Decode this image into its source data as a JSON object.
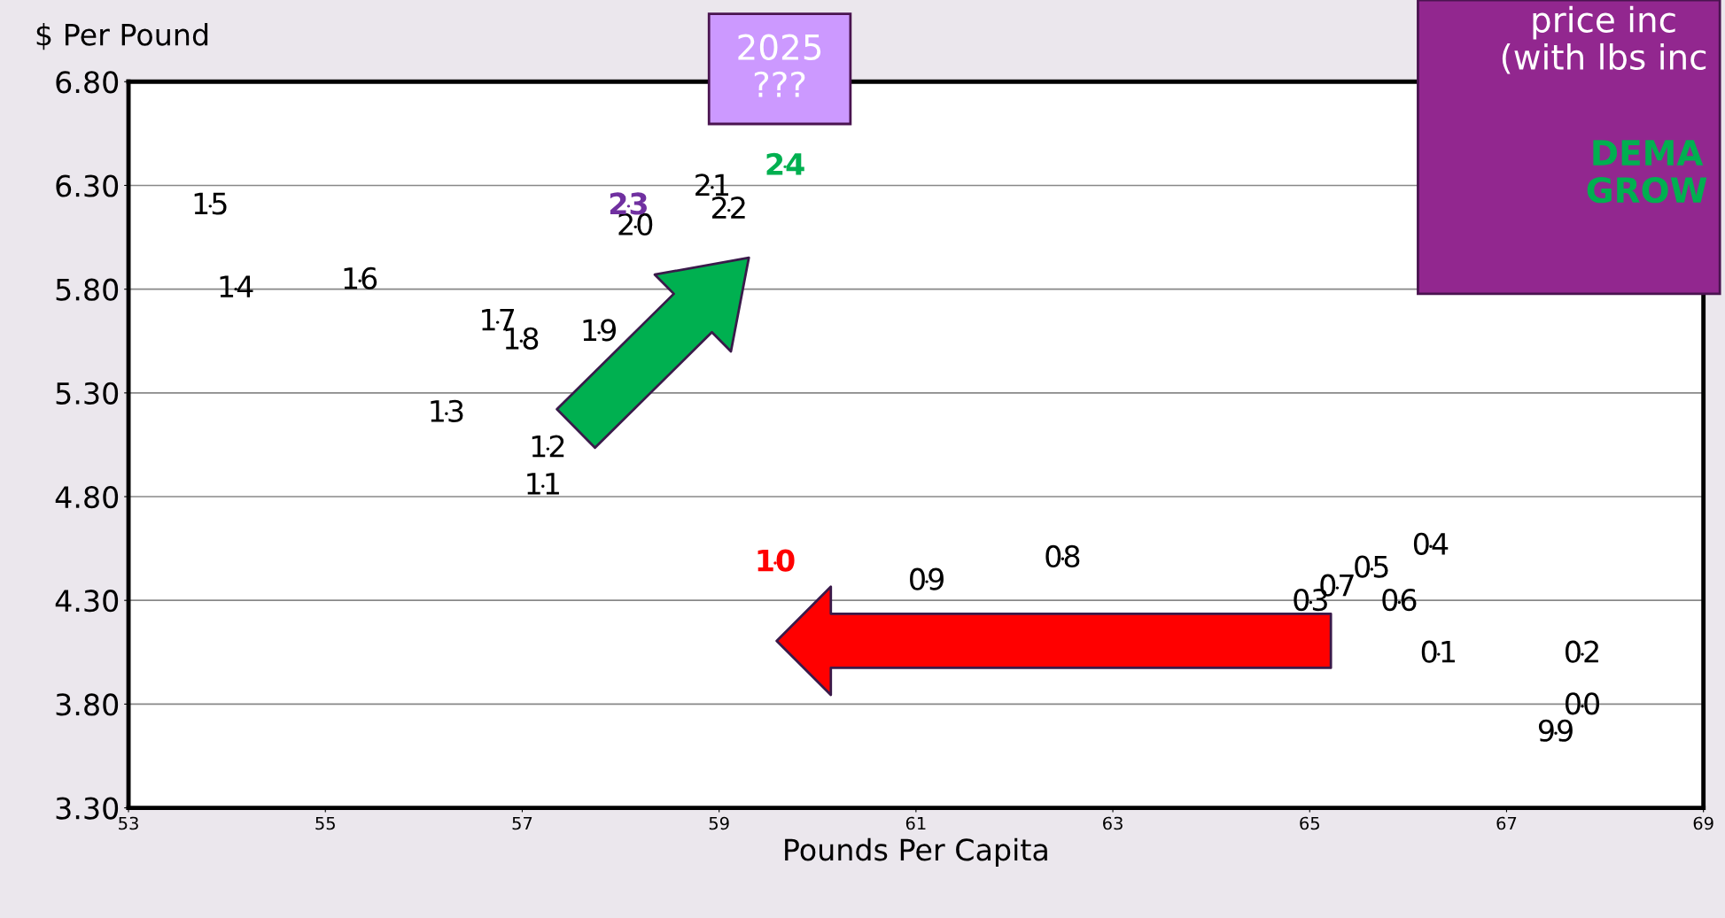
{
  "chart_data": {
    "type": "scatter",
    "xlabel": "Pounds Per Capita",
    "ylabel": "$ Per Pound",
    "xlim": [
      53,
      69
    ],
    "xticks": [
      53,
      55,
      57,
      59,
      61,
      63,
      65,
      67,
      69
    ],
    "ylim": [
      3.3,
      6.8
    ],
    "yticks": [
      {
        "value": 3.3,
        "label": "3.30"
      },
      {
        "value": 3.8,
        "label": "3.80"
      },
      {
        "value": 4.3,
        "label": "4.30"
      },
      {
        "value": 4.8,
        "label": "4.80"
      },
      {
        "value": 5.3,
        "label": "5.30"
      },
      {
        "value": 5.8,
        "label": "5.80"
      },
      {
        "value": 6.3,
        "label": "6.30"
      },
      {
        "value": 6.8,
        "label": "6.80"
      }
    ],
    "grid": "y",
    "annotations": [
      "2025\n???",
      "price inc\n(with lbs inc",
      "DEMA\nGROW",
      {
        "text": "99",
        "x": 67.5,
        "y": 3.66
      },
      {
        "text": "00",
        "x": 67.77,
        "y": 3.79
      },
      {
        "text": "01",
        "x": 66.31,
        "y": 4.04
      },
      {
        "text": "02",
        "x": 67.77,
        "y": 4.04
      },
      {
        "text": "03",
        "x": 65.01,
        "y": 4.29
      },
      {
        "text": "04",
        "x": 66.23,
        "y": 4.56
      },
      {
        "text": "05",
        "x": 65.63,
        "y": 4.45
      },
      {
        "text": "06",
        "x": 65.91,
        "y": 4.29
      },
      {
        "text": "07",
        "x": 65.28,
        "y": 4.36
      },
      {
        "text": "08",
        "x": 62.49,
        "y": 4.5
      },
      {
        "text": "09",
        "x": 61.11,
        "y": 4.39
      },
      {
        "text": "10",
        "x": 59.57,
        "y": 4.48
      },
      {
        "text": "11",
        "x": 57.21,
        "y": 4.85
      },
      {
        "text": "12",
        "x": 57.26,
        "y": 5.03
      },
      {
        "text": "13",
        "x": 56.23,
        "y": 5.2
      },
      {
        "text": "14",
        "x": 54.09,
        "y": 5.8
      },
      {
        "text": "15",
        "x": 53.83,
        "y": 6.2
      },
      {
        "text": "16",
        "x": 55.35,
        "y": 5.84
      },
      {
        "text": "17",
        "x": 56.75,
        "y": 5.64
      },
      {
        "text": "18",
        "x": 56.99,
        "y": 5.55
      },
      {
        "text": "19",
        "x": 57.78,
        "y": 5.59
      },
      {
        "text": "20",
        "x": 58.15,
        "y": 6.1
      },
      {
        "text": "21",
        "x": 58.93,
        "y": 6.29
      },
      {
        "text": "22",
        "x": 59.1,
        "y": 6.18
      },
      {
        "text": "23",
        "x": 58.08,
        "y": 6.2
      },
      {
        "text": "24",
        "x": 59.67,
        "y": 6.39
      }
    ],
    "series": [
      {
        "x": [
          67.5,
          67.77,
          66.31,
          67.77,
          65.01,
          66.23,
          65.63,
          65.91,
          65.28,
          62.49,
          61.11,
          59.57,
          57.21,
          57.26,
          56.23,
          54.09,
          53.83,
          55.35,
          56.75,
          56.99,
          57.78,
          58.15,
          58.93,
          59.1,
          58.08,
          59.67
        ],
        "values": [
          3.66,
          3.79,
          4.04,
          4.04,
          4.29,
          4.56,
          4.45,
          4.29,
          4.36,
          4.5,
          4.39,
          4.48,
          4.85,
          5.03,
          5.2,
          5.8,
          6.2,
          5.84,
          5.64,
          5.55,
          5.59,
          6.1,
          6.29,
          6.18,
          6.2,
          6.39
        ],
        "colors": [
          "#000000",
          "#000000",
          "#000000",
          "#000000",
          "#000000",
          "#000000",
          "#000000",
          "#000000",
          "#000000",
          "#000000",
          "#000000",
          "#ff0000",
          "#000000",
          "#000000",
          "#000000",
          "#000000",
          "#000000",
          "#000000",
          "#000000",
          "#000000",
          "#000000",
          "#000000",
          "#000000",
          "#000000",
          "#7030a0",
          "#00b050"
        ]
      }
    ]
  }
}
